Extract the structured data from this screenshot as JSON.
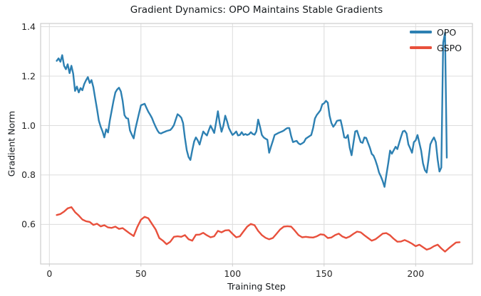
{
  "chart_data": {
    "type": "line",
    "title": "Gradient Dynamics: OPO Maintains Stable Gradients",
    "xlabel": "Training Step",
    "ylabel": "Gradient Norm",
    "xlim": [
      -4.8,
      231
    ],
    "ylim": [
      0.44,
      1.413
    ],
    "xticks": [
      0,
      50,
      100,
      150,
      200
    ],
    "yticks": [
      0.6,
      0.8,
      1.0,
      1.2,
      1.4
    ],
    "grid": true,
    "legend_position": "upper right",
    "style": {
      "grid_color": "#dcdcdc",
      "spine_color": "#cdcdcd",
      "text_color": "#262626",
      "background": "#ffffff",
      "line_width": 2.4
    },
    "series": [
      {
        "name": "OPO",
        "color": "#2d80b2",
        "x_start": 4,
        "x_step": 1,
        "y": [
          1.262,
          1.272,
          1.258,
          1.285,
          1.242,
          1.228,
          1.248,
          1.212,
          1.242,
          1.21,
          1.14,
          1.158,
          1.134,
          1.152,
          1.143,
          1.168,
          1.183,
          1.196,
          1.172,
          1.184,
          1.155,
          1.11,
          1.066,
          1.02,
          0.995,
          0.976,
          0.952,
          0.985,
          0.972,
          1.02,
          1.06,
          1.1,
          1.134,
          1.146,
          1.153,
          1.138,
          1.1,
          1.042,
          1.03,
          1.028,
          0.98,
          0.963,
          0.948,
          0.988,
          1.02,
          1.052,
          1.082,
          1.085,
          1.088,
          1.072,
          1.056,
          1.044,
          1.03,
          1.012,
          0.995,
          0.98,
          0.97,
          0.968,
          0.972,
          0.975,
          0.978,
          0.98,
          0.982,
          0.99,
          1.002,
          1.025,
          1.046,
          1.04,
          1.032,
          1.01,
          0.95,
          0.9,
          0.872,
          0.861,
          0.9,
          0.935,
          0.952,
          0.94,
          0.923,
          0.95,
          0.976,
          0.967,
          0.96,
          0.98,
          1.0,
          0.985,
          0.97,
          1.012,
          1.058,
          1.01,
          0.975,
          1.0,
          1.04,
          1.018,
          0.99,
          0.975,
          0.962,
          0.968,
          0.976,
          0.96,
          0.962,
          0.973,
          0.962,
          0.966,
          0.962,
          0.965,
          0.973,
          0.966,
          0.963,
          0.976,
          1.024,
          0.995,
          0.962,
          0.952,
          0.947,
          0.943,
          0.89,
          0.915,
          0.938,
          0.962,
          0.966,
          0.97,
          0.973,
          0.976,
          0.98,
          0.986,
          0.99,
          0.99,
          0.957,
          0.933,
          0.936,
          0.938,
          0.928,
          0.924,
          0.928,
          0.933,
          0.947,
          0.952,
          0.957,
          0.962,
          0.99,
          1.029,
          1.043,
          1.052,
          1.062,
          1.086,
          1.09,
          1.1,
          1.093,
          1.04,
          1.01,
          0.995,
          1.005,
          1.019,
          1.021,
          1.022,
          0.99,
          0.952,
          0.95,
          0.962,
          0.91,
          0.88,
          0.93,
          0.976,
          0.979,
          0.955,
          0.933,
          0.93,
          0.952,
          0.95,
          0.93,
          0.91,
          0.885,
          0.878,
          0.86,
          0.837,
          0.81,
          0.794,
          0.775,
          0.752,
          0.8,
          0.847,
          0.899,
          0.886,
          0.9,
          0.914,
          0.905,
          0.93,
          0.955,
          0.976,
          0.979,
          0.968,
          0.924,
          0.908,
          0.89,
          0.933,
          0.94,
          0.962,
          0.93,
          0.899,
          0.847,
          0.82,
          0.81,
          0.862,
          0.924,
          0.94,
          0.952,
          0.933,
          0.862,
          0.814,
          0.83,
          1.335,
          1.375,
          0.87
        ]
      },
      {
        "name": "GSPO",
        "color": "#e8503c",
        "x_start": 4,
        "x_step": 2,
        "y": [
          0.638,
          0.642,
          0.652,
          0.665,
          0.67,
          0.65,
          0.636,
          0.62,
          0.613,
          0.61,
          0.598,
          0.603,
          0.592,
          0.597,
          0.588,
          0.586,
          0.591,
          0.582,
          0.585,
          0.574,
          0.563,
          0.553,
          0.59,
          0.619,
          0.631,
          0.625,
          0.602,
          0.58,
          0.545,
          0.534,
          0.52,
          0.53,
          0.55,
          0.552,
          0.55,
          0.557,
          0.54,
          0.534,
          0.558,
          0.559,
          0.566,
          0.556,
          0.548,
          0.552,
          0.574,
          0.568,
          0.576,
          0.577,
          0.562,
          0.548,
          0.552,
          0.572,
          0.591,
          0.602,
          0.597,
          0.574,
          0.557,
          0.546,
          0.54,
          0.545,
          0.562,
          0.58,
          0.591,
          0.593,
          0.591,
          0.575,
          0.557,
          0.548,
          0.55,
          0.548,
          0.547,
          0.552,
          0.56,
          0.558,
          0.545,
          0.547,
          0.557,
          0.563,
          0.551,
          0.545,
          0.551,
          0.562,
          0.571,
          0.568,
          0.556,
          0.545,
          0.534,
          0.54,
          0.551,
          0.563,
          0.565,
          0.556,
          0.542,
          0.53,
          0.531,
          0.537,
          0.53,
          0.522,
          0.512,
          0.518,
          0.508,
          0.498,
          0.503,
          0.512,
          0.518,
          0.503,
          0.49,
          0.503,
          0.515,
          0.527,
          0.528
        ]
      }
    ]
  }
}
